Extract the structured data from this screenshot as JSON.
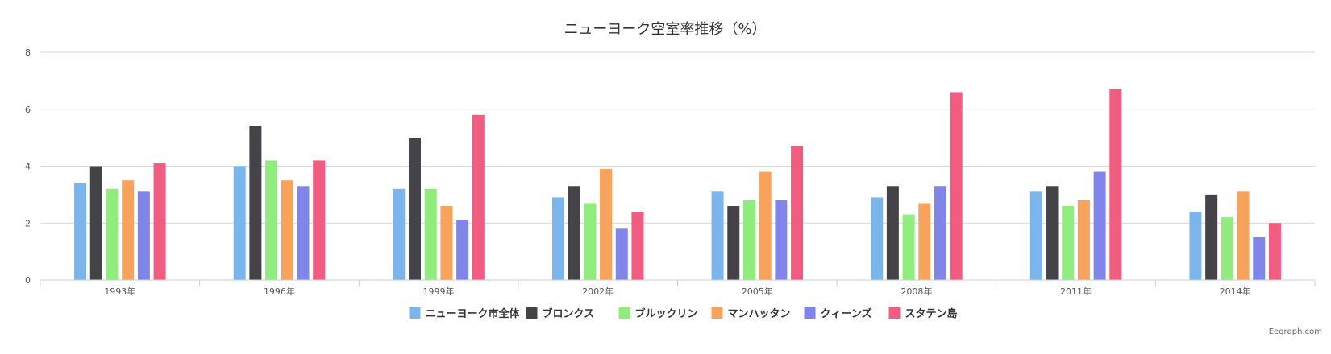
{
  "chart_data": {
    "type": "bar",
    "title": "ニューヨーク空室率推移（%）",
    "categories": [
      "1993年",
      "1996年",
      "1999年",
      "2002年",
      "2005年",
      "2008年",
      "2011年",
      "2014年"
    ],
    "ylim": [
      0,
      8
    ],
    "yticks": [
      0,
      2,
      4,
      6,
      8
    ],
    "grid": true,
    "legend_position": "bottom",
    "series": [
      {
        "name": "ニューヨーク市全体",
        "color": "#7cb5ec",
        "values": [
          3.4,
          4.0,
          3.2,
          2.9,
          3.1,
          2.9,
          3.1,
          2.4
        ]
      },
      {
        "name": "ブロンクス",
        "color": "#434348",
        "values": [
          4.0,
          5.4,
          5.0,
          3.3,
          2.6,
          3.3,
          3.3,
          3.0
        ]
      },
      {
        "name": "ブルックリン",
        "color": "#90ed7d",
        "values": [
          3.2,
          4.2,
          3.2,
          2.7,
          2.8,
          2.3,
          2.6,
          2.2
        ]
      },
      {
        "name": "マンハッタン",
        "color": "#f7a35c",
        "values": [
          3.5,
          3.5,
          2.6,
          3.9,
          3.8,
          2.7,
          2.8,
          3.1
        ]
      },
      {
        "name": "クィーンズ",
        "color": "#8085e9",
        "values": [
          3.1,
          3.3,
          2.1,
          1.8,
          2.8,
          3.3,
          3.8,
          1.5
        ]
      },
      {
        "name": "スタテン島",
        "color": "#f15c80",
        "values": [
          4.1,
          4.2,
          5.8,
          2.4,
          4.7,
          6.6,
          6.7,
          2.0
        ]
      }
    ]
  },
  "credit": "Eegraph.com"
}
